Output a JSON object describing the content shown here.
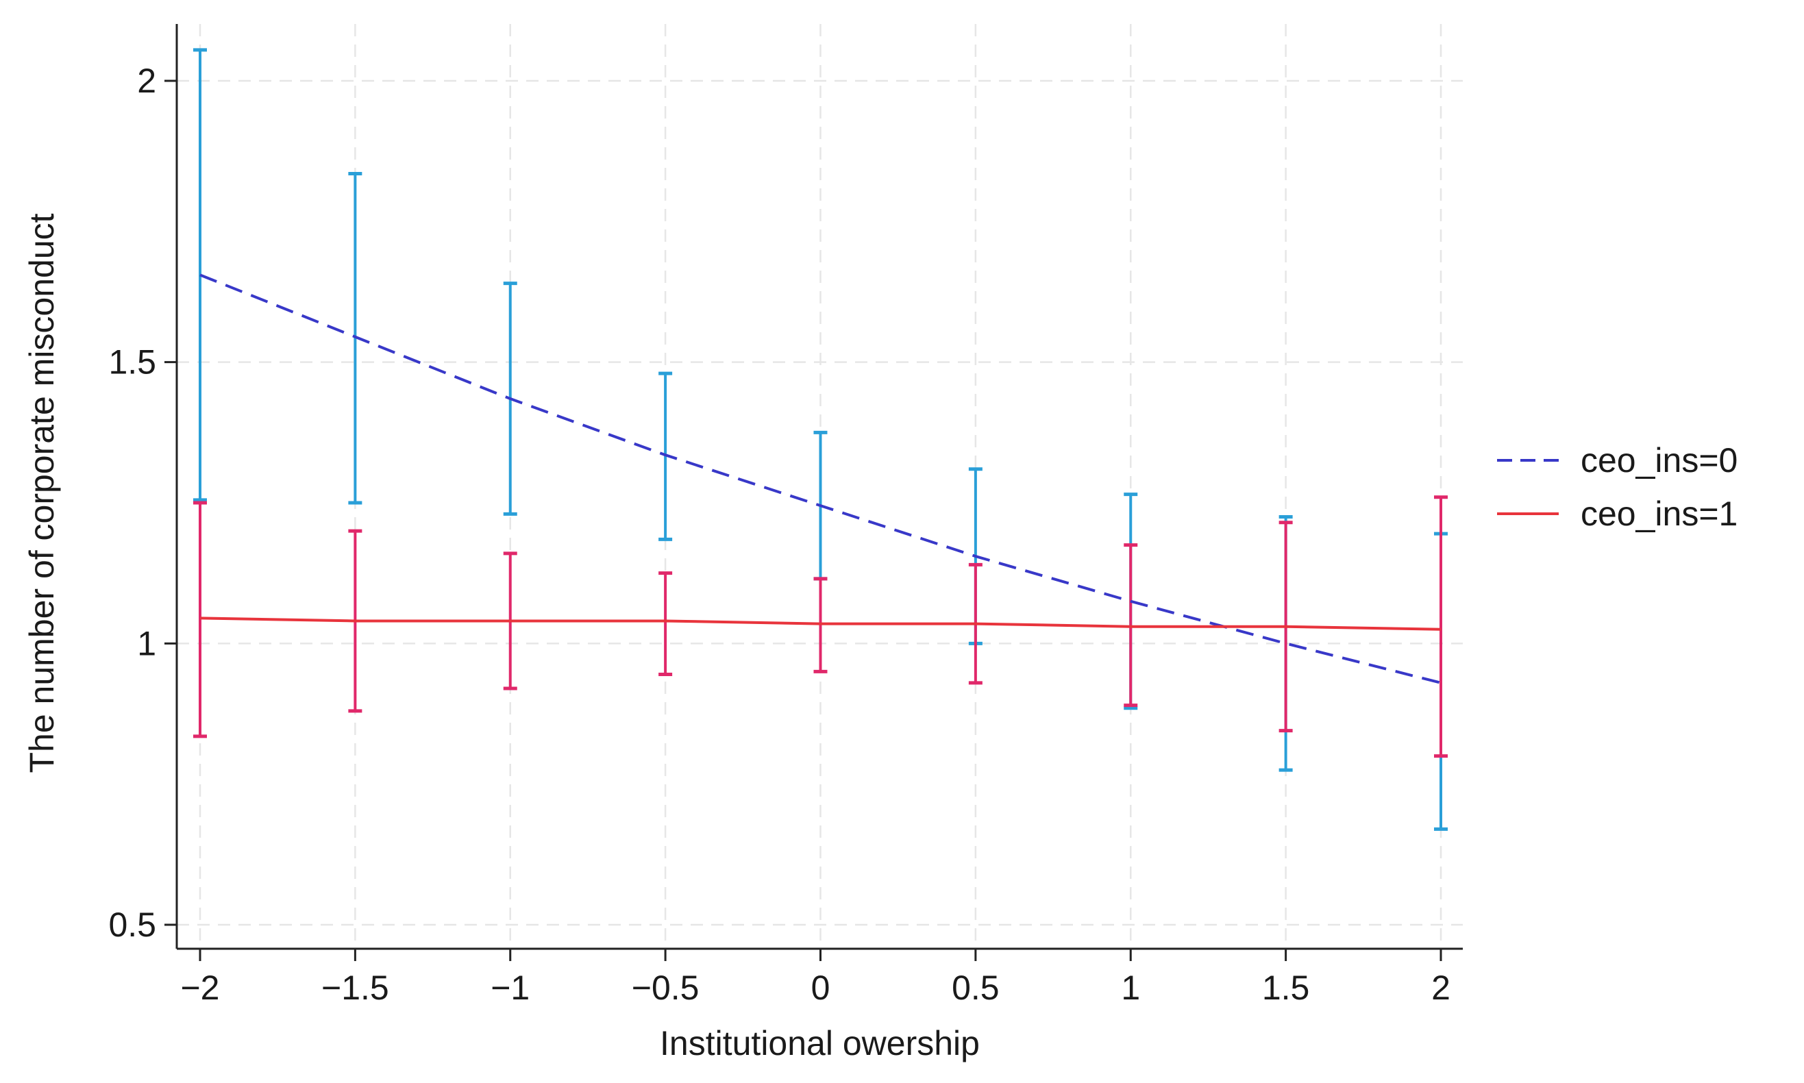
{
  "chart_data": {
    "type": "line",
    "title": "",
    "xlabel": "Institutional owership",
    "ylabel": "The number of corporate misconduct",
    "xlim": [
      -2,
      2
    ],
    "ylim": [
      0.5,
      2.1
    ],
    "x": [
      -2,
      -1.5,
      -1,
      -0.5,
      0,
      0.5,
      1,
      1.5,
      2
    ],
    "x_tick_labels": [
      "−2",
      "−1.5",
      "−1",
      "−0.5",
      "0",
      "0.5",
      "1",
      "1.5",
      "2"
    ],
    "y_ticks": [
      0.5,
      1,
      1.5,
      2
    ],
    "y_tick_labels": [
      "0.5",
      "1",
      "1.5",
      "2"
    ],
    "grid": true,
    "legend_position": "right",
    "series": [
      {
        "name": "ceo_ins=0",
        "style": "dashed",
        "line_color": "#3838c8",
        "errorbar_color": "#2a9fd8",
        "values": [
          1.655,
          1.545,
          1.435,
          1.335,
          1.245,
          1.155,
          1.075,
          1.0,
          0.93
        ],
        "ci_lower": [
          1.255,
          1.25,
          1.23,
          1.185,
          1.115,
          1.0,
          0.885,
          0.775,
          0.67
        ],
        "ci_upper": [
          2.055,
          1.835,
          1.64,
          1.48,
          1.375,
          1.31,
          1.265,
          1.225,
          1.195
        ]
      },
      {
        "name": "ceo_ins=1",
        "style": "solid",
        "line_color": "#e8343c",
        "errorbar_color": "#e0286a",
        "values": [
          1.045,
          1.04,
          1.04,
          1.04,
          1.035,
          1.035,
          1.03,
          1.03,
          1.025
        ],
        "ci_lower": [
          0.835,
          0.88,
          0.92,
          0.945,
          0.95,
          0.93,
          0.89,
          0.845,
          0.8
        ],
        "ci_upper": [
          1.25,
          1.2,
          1.16,
          1.125,
          1.115,
          1.14,
          1.175,
          1.215,
          1.26
        ]
      }
    ]
  }
}
